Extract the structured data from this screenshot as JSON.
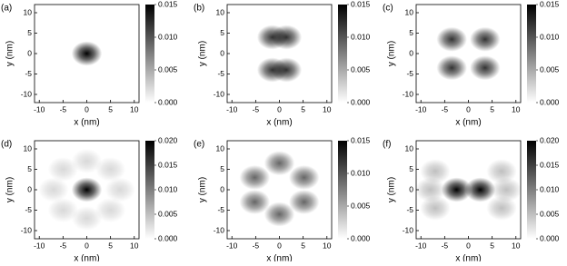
{
  "chart_data": [
    {
      "type": "heatmap",
      "label": "(a)",
      "xlabel": "x (nm)",
      "ylabel": "y (nm)",
      "xlim": [
        -11,
        11
      ],
      "ylim": [
        -12,
        12
      ],
      "xticks": [
        -10,
        -5,
        0,
        5,
        10
      ],
      "yticks": [
        -10,
        -5,
        0,
        5,
        10
      ],
      "clim": [
        0,
        0.015
      ],
      "cticks": [
        {
          "value": 0,
          "label": "0.000"
        },
        0.005,
        {
          "value": 0.01,
          "label": "0.010"
        },
        0.015
      ],
      "x": [
        0
      ],
      "y": [
        0
      ],
      "values": [
        0.015
      ]
    },
    {
      "type": "heatmap",
      "label": "(b)",
      "xlabel": "x (nm)",
      "ylabel": "y (nm)",
      "xlim": [
        -11,
        11
      ],
      "ylim": [
        -12,
        12
      ],
      "xticks": [
        -10,
        -5,
        0,
        5,
        10
      ],
      "yticks": [
        -10,
        -5,
        0,
        5,
        10
      ],
      "clim": [
        0,
        0.015
      ],
      "cticks": [
        {
          "value": 0,
          "label": "0.000"
        },
        0.005,
        {
          "value": 0.01,
          "label": "0.010"
        },
        0.015
      ],
      "x": [
        -1.5,
        1.5,
        -1.5,
        1.5
      ],
      "y": [
        4,
        4,
        -4,
        -4
      ],
      "values": [
        0.012,
        0.012,
        0.012,
        0.012
      ]
    },
    {
      "type": "heatmap",
      "label": "(c)",
      "xlabel": "x (nm)",
      "ylabel": "y (nm)",
      "xlim": [
        -11,
        11
      ],
      "ylim": [
        -12,
        12
      ],
      "xticks": [
        -10,
        -5,
        0,
        5,
        10
      ],
      "yticks": [
        -10,
        -5,
        0,
        5,
        10
      ],
      "clim": [
        0,
        0.015
      ],
      "cticks": [
        {
          "value": 0,
          "label": "0.000"
        },
        0.005,
        {
          "value": 0.01,
          "label": "0.010"
        },
        0.015
      ],
      "x": [
        -3.5,
        3.5,
        -3.5,
        3.5
      ],
      "y": [
        3.5,
        3.5,
        -3.5,
        -3.5
      ],
      "values": [
        0.012,
        0.012,
        0.012,
        0.012
      ]
    },
    {
      "type": "heatmap",
      "label": "(d)",
      "xlabel": "x (nm)",
      "ylabel": "y (nm)",
      "xlim": [
        -11,
        11
      ],
      "ylim": [
        -12,
        12
      ],
      "xticks": [
        -10,
        -5,
        0,
        5,
        10
      ],
      "yticks": [
        -10,
        -5,
        0,
        5,
        10
      ],
      "clim": [
        0,
        0.02
      ],
      "cticks": [
        {
          "value": 0,
          "label": "0.000"
        },
        0.005,
        {
          "value": 0.01,
          "label": "0.010"
        },
        0.015,
        {
          "value": 0.02,
          "label": "0.020"
        }
      ],
      "x": [
        0,
        7,
        5,
        0,
        -5,
        -7,
        -5,
        0,
        5
      ],
      "y": [
        0,
        0,
        5,
        7,
        5,
        0,
        -5,
        -7,
        -5
      ],
      "values": [
        0.02,
        0.003,
        0.003,
        0.003,
        0.003,
        0.003,
        0.003,
        0.003,
        0.003
      ]
    },
    {
      "type": "heatmap",
      "label": "(e)",
      "xlabel": "x (nm)",
      "ylabel": "y (nm)",
      "xlim": [
        -11,
        11
      ],
      "ylim": [
        -12,
        12
      ],
      "xticks": [
        -10,
        -5,
        0,
        5,
        10
      ],
      "yticks": [
        -10,
        -5,
        0,
        5,
        10
      ],
      "clim": [
        0,
        0.015
      ],
      "cticks": [
        {
          "value": 0,
          "label": "0.000"
        },
        0.005,
        {
          "value": 0.01,
          "label": "0.010"
        },
        0.015
      ],
      "x": [
        0,
        5.2,
        5.2,
        0,
        -5.2,
        -5.2
      ],
      "y": [
        6.5,
        3,
        -3,
        -6,
        -3,
        3
      ],
      "values": [
        0.009,
        0.009,
        0.009,
        0.009,
        0.009,
        0.009
      ]
    },
    {
      "type": "heatmap",
      "label": "(f)",
      "xlabel": "x (nm)",
      "ylabel": "y (nm)",
      "xlim": [
        -11,
        11
      ],
      "ylim": [
        -12,
        12
      ],
      "xticks": [
        -10,
        -5,
        0,
        5,
        10
      ],
      "yticks": [
        -10,
        -5,
        0,
        5,
        10
      ],
      "clim": [
        0,
        0.02
      ],
      "cticks": [
        {
          "value": 0,
          "label": "0.000"
        },
        0.005,
        {
          "value": 0.01,
          "label": "0.010"
        },
        0.015,
        {
          "value": 0.02,
          "label": "0.020"
        }
      ],
      "x": [
        -2.5,
        2.5,
        8,
        7,
        7,
        -8,
        -7,
        -7
      ],
      "y": [
        0,
        0,
        0,
        4.5,
        -4.5,
        0,
        4.5,
        -4.5
      ],
      "values": [
        0.02,
        0.02,
        0.005,
        0.005,
        0.005,
        0.005,
        0.005,
        0.005
      ]
    }
  ]
}
